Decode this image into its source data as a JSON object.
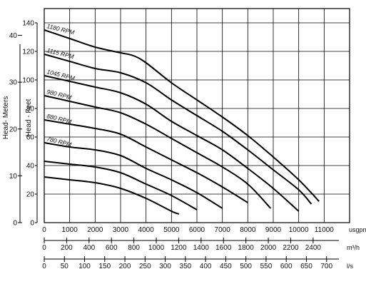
{
  "chart_data": {
    "type": "line",
    "title": "",
    "xlabel": "",
    "ylabel_left": "Head- Meters",
    "ylabel_right": "Head - Feet",
    "grid": true,
    "feet_axis": {
      "ticks": [
        0,
        20,
        40,
        60,
        80,
        100,
        120,
        140
      ],
      "range": [
        0,
        150
      ]
    },
    "meters_axis": {
      "ticks": [
        0,
        10,
        20,
        30,
        40
      ]
    },
    "x_axes": [
      {
        "unit": "usgpm",
        "ticks": [
          0,
          1000,
          2000,
          3000,
          4000,
          5000,
          6000,
          7000,
          8000,
          9000,
          10000,
          11000
        ],
        "range": [
          0,
          12000
        ]
      },
      {
        "unit": "m³/h",
        "ticks": [
          0,
          200,
          400,
          600,
          800,
          1000,
          1200,
          1400,
          1600,
          1800,
          2000,
          2200,
          2400
        ]
      },
      {
        "unit": "l/s",
        "ticks": [
          0,
          50,
          100,
          150,
          200,
          250,
          300,
          350,
          400,
          450,
          500,
          550,
          600,
          650,
          700
        ]
      }
    ],
    "series": [
      {
        "name": "1180 RPM",
        "x": [
          0,
          1000,
          2000,
          3000,
          3500,
          4000,
          5000,
          6000,
          7000,
          8000,
          9000,
          10000,
          10800
        ],
        "y": [
          135,
          129,
          123,
          119,
          117,
          112,
          98,
          86,
          74,
          61,
          46,
          30,
          15
        ]
      },
      {
        "name": "1115 RPM",
        "x": [
          0,
          1000,
          2000,
          3000,
          4000,
          5000,
          6000,
          7000,
          8000,
          9000,
          10000,
          10500
        ],
        "y": [
          118,
          113,
          108,
          105,
          98,
          86,
          75,
          64,
          51,
          37,
          23,
          13
        ]
      },
      {
        "name": "1045 RPM",
        "x": [
          0,
          1000,
          2000,
          3000,
          4000,
          5000,
          6000,
          7000,
          8000,
          9000,
          10000
        ],
        "y": [
          103,
          99,
          95,
          91,
          83,
          71,
          61,
          51,
          38,
          24,
          8
        ]
      },
      {
        "name": "980 RPM",
        "x": [
          0,
          1000,
          2000,
          3000,
          4000,
          5000,
          6000,
          7000,
          8000,
          8900
        ],
        "y": [
          89,
          85,
          81,
          77,
          69,
          59,
          49,
          39,
          27,
          10
        ]
      },
      {
        "name": "880 RPM",
        "x": [
          0,
          1000,
          2000,
          3000,
          4000,
          5000,
          6000,
          7000,
          8000
        ],
        "y": [
          72,
          69,
          66,
          62,
          53,
          44,
          35,
          25,
          14
        ]
      },
      {
        "name": "780 RPM",
        "x": [
          0,
          1000,
          2000,
          3000,
          4000,
          5000,
          6000,
          7000
        ],
        "y": [
          56,
          53,
          51,
          47,
          38,
          30,
          21,
          10
        ]
      },
      {
        "name": "",
        "x": [
          0,
          1000,
          2000,
          3000,
          4000,
          5000,
          6000
        ],
        "y": [
          43,
          41,
          39,
          35,
          27,
          19,
          9
        ]
      },
      {
        "name": "",
        "x": [
          0,
          1000,
          2000,
          3000,
          4000,
          5000,
          5300
        ],
        "y": [
          32,
          30,
          28,
          24,
          17,
          8,
          6
        ]
      }
    ]
  }
}
